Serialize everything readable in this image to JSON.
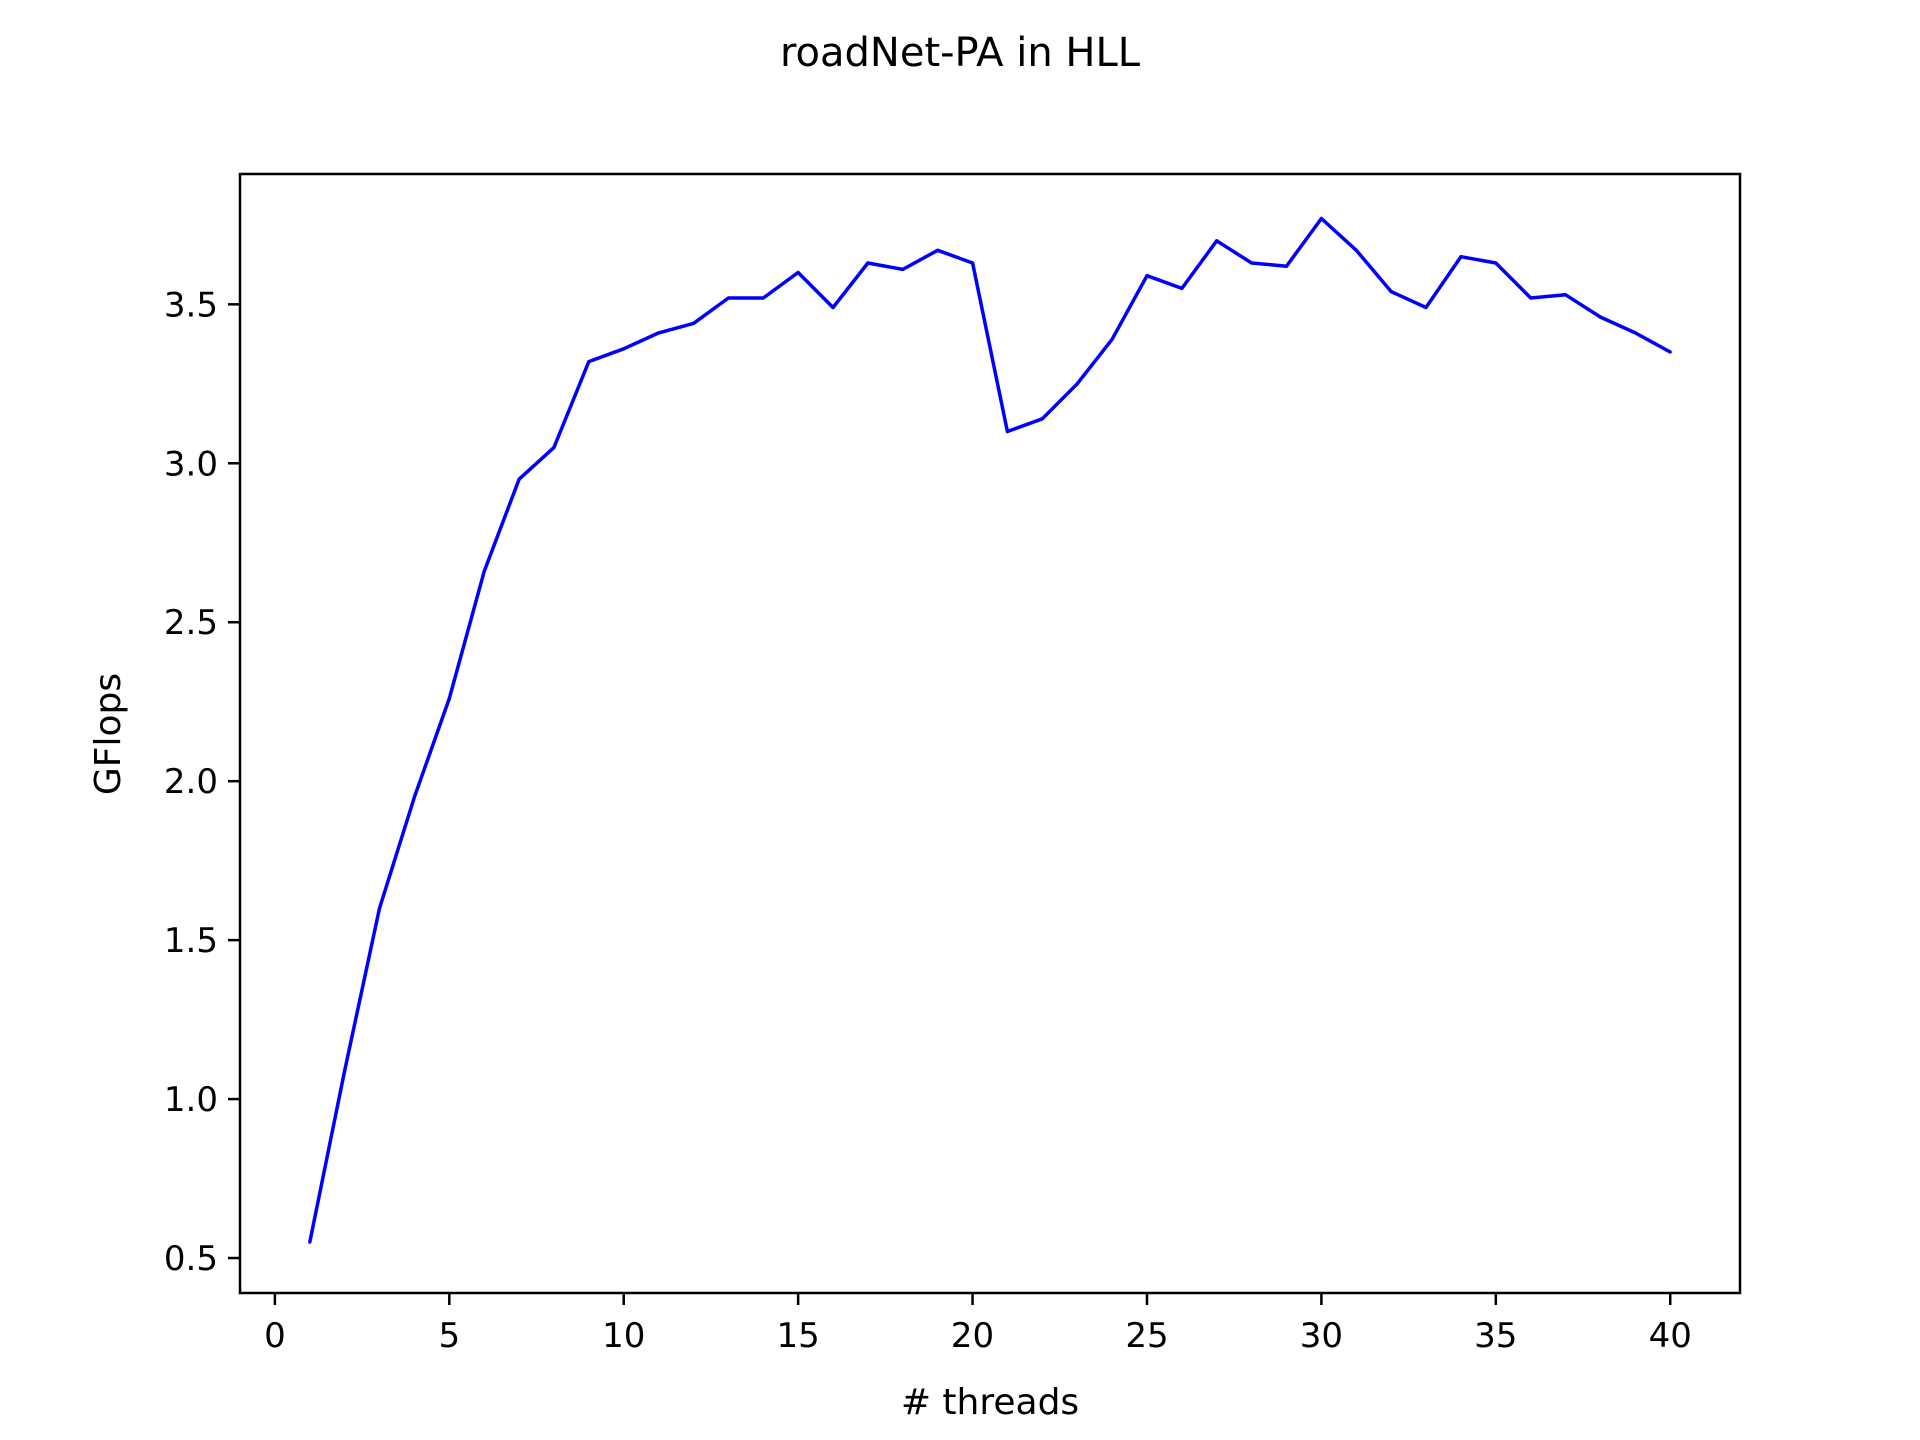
{
  "chart_data": {
    "type": "line",
    "title": "roadNet-PA in HLL",
    "xlabel": "# threads",
    "ylabel": "GFlops",
    "xlim": [
      -1,
      42
    ],
    "ylim": [
      0.39,
      3.91
    ],
    "xticks": [
      0,
      5,
      10,
      15,
      20,
      25,
      30,
      35,
      40
    ],
    "xtick_labels": [
      "0",
      "5",
      "10",
      "15",
      "20",
      "25",
      "30",
      "35",
      "40"
    ],
    "yticks": [
      0.5,
      1.0,
      1.5,
      2.0,
      2.5,
      3.0,
      3.5
    ],
    "ytick_labels": [
      "0.5",
      "1.0",
      "1.5",
      "2.0",
      "2.5",
      "3.0",
      "3.5"
    ],
    "grid": false,
    "series": [
      {
        "color": "#0000ff",
        "x": [
          1,
          2,
          3,
          4,
          5,
          6,
          7,
          8,
          9,
          10,
          11,
          12,
          13,
          14,
          15,
          16,
          17,
          18,
          19,
          20,
          21,
          22,
          23,
          24,
          25,
          26,
          27,
          28,
          29,
          30,
          31,
          32,
          33,
          34,
          35,
          36,
          37,
          38,
          39,
          40
        ],
        "y": [
          0.55,
          1.09,
          1.6,
          1.95,
          2.26,
          2.66,
          2.95,
          3.05,
          3.32,
          3.36,
          3.41,
          3.44,
          3.52,
          3.52,
          3.6,
          3.49,
          3.63,
          3.61,
          3.67,
          3.63,
          3.1,
          3.14,
          3.25,
          3.39,
          3.59,
          3.55,
          3.7,
          3.63,
          3.62,
          3.77,
          3.67,
          3.54,
          3.49,
          3.65,
          3.63,
          3.52,
          3.53,
          3.46,
          3.41,
          3.35
        ]
      }
    ]
  }
}
